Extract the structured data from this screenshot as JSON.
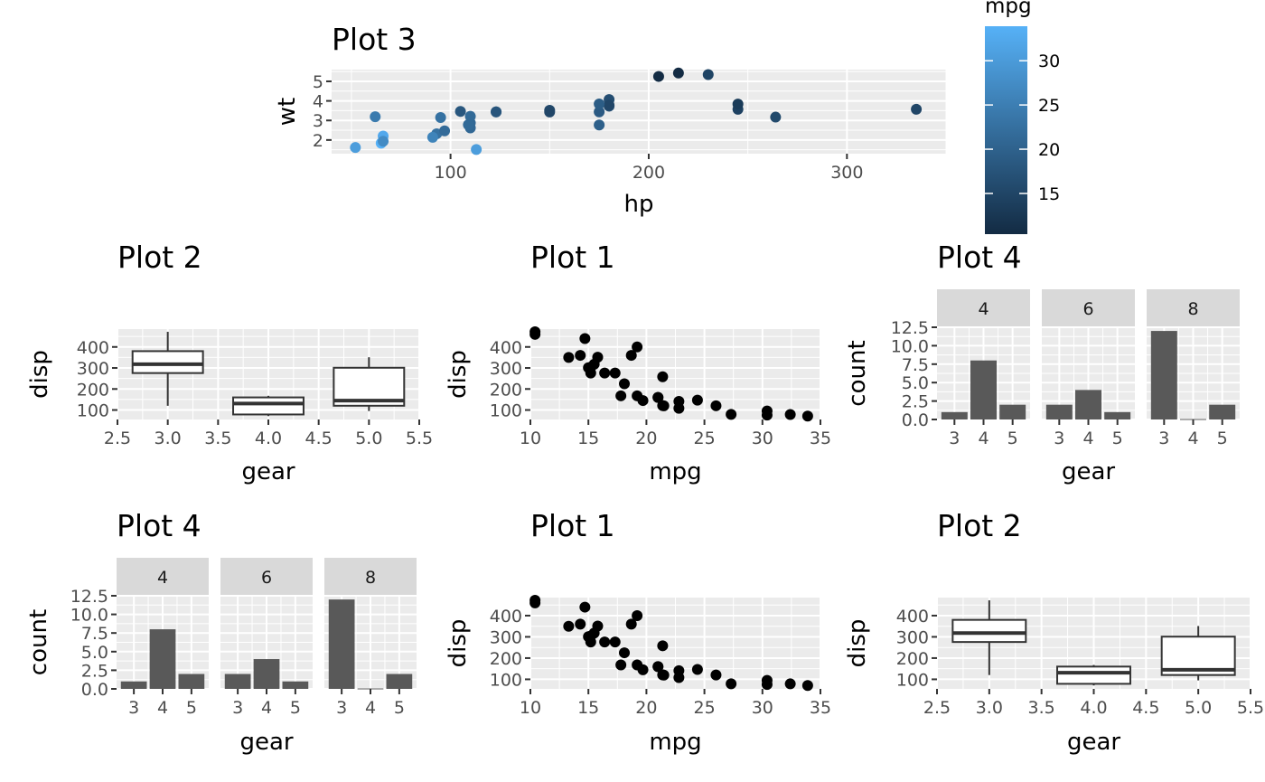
{
  "legend": {
    "title": "mpg",
    "ticks": [
      15,
      20,
      25,
      30
    ],
    "range": [
      10.4,
      33.9
    ],
    "colors": {
      "low": "#132B43",
      "high": "#56B1F7"
    }
  },
  "theme": {
    "panel": "#EBEBEB",
    "grid": "#FFFFFF",
    "strip": "#D9D9D9",
    "bar_fill": "#595959",
    "point": "#000000"
  },
  "chart_data": [
    {
      "id": "plot3",
      "type": "scatter",
      "title": "Plot 3",
      "xlabel": "hp",
      "ylabel": "wt",
      "xlim": [
        40,
        350
      ],
      "ylim": [
        1.3,
        5.6
      ],
      "xticks": [
        100,
        200,
        300
      ],
      "yticks": [
        2,
        3,
        4,
        5
      ],
      "color_by": "mpg",
      "points": [
        {
          "x": 110,
          "y": 2.62,
          "c": 21.0
        },
        {
          "x": 110,
          "y": 2.875,
          "c": 21.0
        },
        {
          "x": 93,
          "y": 2.32,
          "c": 22.8
        },
        {
          "x": 110,
          "y": 3.215,
          "c": 21.4
        },
        {
          "x": 175,
          "y": 3.44,
          "c": 18.7
        },
        {
          "x": 105,
          "y": 3.46,
          "c": 18.1
        },
        {
          "x": 245,
          "y": 3.57,
          "c": 14.3
        },
        {
          "x": 62,
          "y": 3.19,
          "c": 24.4
        },
        {
          "x": 95,
          "y": 3.15,
          "c": 22.8
        },
        {
          "x": 123,
          "y": 3.44,
          "c": 19.2
        },
        {
          "x": 123,
          "y": 3.44,
          "c": 17.8
        },
        {
          "x": 180,
          "y": 4.07,
          "c": 16.4
        },
        {
          "x": 180,
          "y": 3.73,
          "c": 17.3
        },
        {
          "x": 180,
          "y": 3.78,
          "c": 15.2
        },
        {
          "x": 205,
          "y": 5.25,
          "c": 10.4
        },
        {
          "x": 215,
          "y": 5.424,
          "c": 10.4
        },
        {
          "x": 230,
          "y": 5.345,
          "c": 14.7
        },
        {
          "x": 66,
          "y": 2.2,
          "c": 32.4
        },
        {
          "x": 52,
          "y": 1.615,
          "c": 30.4
        },
        {
          "x": 65,
          "y": 1.835,
          "c": 33.9
        },
        {
          "x": 97,
          "y": 2.465,
          "c": 21.5
        },
        {
          "x": 150,
          "y": 3.52,
          "c": 15.5
        },
        {
          "x": 150,
          "y": 3.435,
          "c": 15.2
        },
        {
          "x": 245,
          "y": 3.84,
          "c": 13.3
        },
        {
          "x": 175,
          "y": 3.845,
          "c": 19.2
        },
        {
          "x": 66,
          "y": 1.935,
          "c": 27.3
        },
        {
          "x": 91,
          "y": 2.14,
          "c": 26.0
        },
        {
          "x": 113,
          "y": 1.513,
          "c": 30.4
        },
        {
          "x": 264,
          "y": 3.17,
          "c": 15.8
        },
        {
          "x": 175,
          "y": 2.77,
          "c": 19.7
        },
        {
          "x": 335,
          "y": 3.57,
          "c": 15.0
        },
        {
          "x": 109,
          "y": 2.78,
          "c": 21.4
        }
      ]
    },
    {
      "id": "plot1",
      "type": "scatter",
      "title": "Plot 1",
      "xlabel": "mpg",
      "ylabel": "disp",
      "xlim": [
        10,
        35
      ],
      "ylim": [
        55,
        485
      ],
      "xticks": [
        10,
        15,
        20,
        25,
        30,
        35
      ],
      "yticks": [
        100,
        200,
        300,
        400
      ],
      "points": [
        {
          "x": 21,
          "y": 160
        },
        {
          "x": 21,
          "y": 160
        },
        {
          "x": 22.8,
          "y": 108
        },
        {
          "x": 21.4,
          "y": 258
        },
        {
          "x": 18.7,
          "y": 360
        },
        {
          "x": 18.1,
          "y": 225
        },
        {
          "x": 14.3,
          "y": 360
        },
        {
          "x": 24.4,
          "y": 146.7
        },
        {
          "x": 22.8,
          "y": 140.8
        },
        {
          "x": 19.2,
          "y": 167.6
        },
        {
          "x": 17.8,
          "y": 167.6
        },
        {
          "x": 16.4,
          "y": 275.8
        },
        {
          "x": 17.3,
          "y": 275.8
        },
        {
          "x": 15.2,
          "y": 275.8
        },
        {
          "x": 10.4,
          "y": 472
        },
        {
          "x": 10.4,
          "y": 460
        },
        {
          "x": 14.7,
          "y": 440
        },
        {
          "x": 32.4,
          "y": 78.7
        },
        {
          "x": 30.4,
          "y": 75.7
        },
        {
          "x": 33.9,
          "y": 71.1
        },
        {
          "x": 21.5,
          "y": 120.1
        },
        {
          "x": 15.5,
          "y": 318
        },
        {
          "x": 15.2,
          "y": 304
        },
        {
          "x": 13.3,
          "y": 350
        },
        {
          "x": 19.2,
          "y": 400
        },
        {
          "x": 27.3,
          "y": 79
        },
        {
          "x": 26,
          "y": 120.3
        },
        {
          "x": 30.4,
          "y": 95.1
        },
        {
          "x": 15.8,
          "y": 351
        },
        {
          "x": 19.7,
          "y": 145
        },
        {
          "x": 15,
          "y": 301
        },
        {
          "x": 21.4,
          "y": 121
        }
      ]
    },
    {
      "id": "plot2",
      "type": "box",
      "title": "Plot 2",
      "xlabel": "gear",
      "ylabel": "disp",
      "xlim": [
        2.5,
        5.5
      ],
      "ylim": [
        55,
        485
      ],
      "xticks": [
        "2.5",
        "3.0",
        "3.5",
        "4.0",
        "4.5",
        "5.0",
        "5.5"
      ],
      "yticks": [
        100,
        200,
        300,
        400
      ],
      "boxes": [
        {
          "x": 3,
          "min": 120.1,
          "q1": 275.8,
          "median": 318.0,
          "q3": 380.0,
          "max": 472.0
        },
        {
          "x": 4,
          "min": 71.1,
          "q1": 78.85,
          "median": 130.9,
          "q3": 160.0,
          "max": 167.6
        },
        {
          "x": 5,
          "min": 95.1,
          "q1": 120.3,
          "median": 145.0,
          "q3": 301.0,
          "max": 351.0
        }
      ]
    },
    {
      "id": "plot4",
      "type": "bar",
      "title": "Plot 4",
      "xlabel": "gear",
      "ylabel": "count",
      "ylim": [
        0,
        12.5
      ],
      "yticks": [
        "0.0",
        "2.5",
        "5.0",
        "7.5",
        "10.0",
        "12.5"
      ],
      "categories": [
        "3",
        "4",
        "5"
      ],
      "facets": [
        {
          "label": "4",
          "values": [
            1,
            8,
            2
          ]
        },
        {
          "label": "6",
          "values": [
            2,
            4,
            1
          ]
        },
        {
          "label": "8",
          "values": [
            12,
            0,
            2
          ]
        }
      ]
    }
  ]
}
